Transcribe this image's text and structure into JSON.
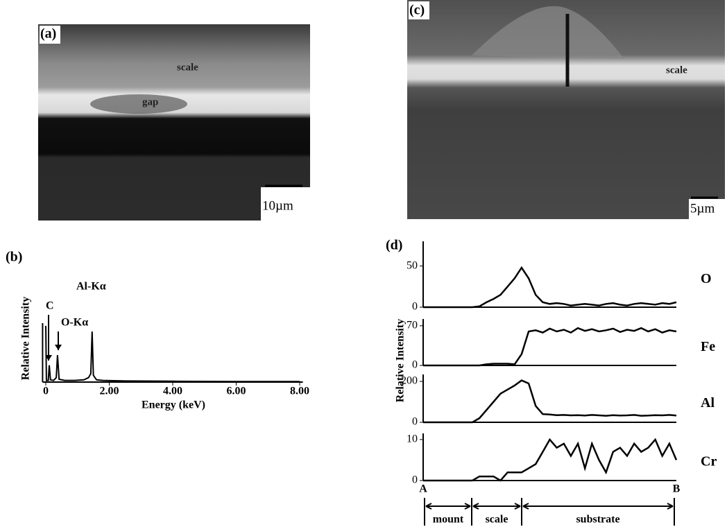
{
  "panels": {
    "a": {
      "label": "(a)",
      "annotations": [
        "scale",
        "gap"
      ],
      "scale_bar": "10µm"
    },
    "c": {
      "label": "(c)",
      "annotations": [
        "scale"
      ],
      "scale_bar": "5µm"
    },
    "d": {
      "label": "(d)",
      "y_label": "Relative Intensity",
      "start": "A",
      "end": "B",
      "segments": [
        "mount",
        "scale",
        "substrate"
      ]
    }
  },
  "chart_data": [
    {
      "type": "line",
      "label": "(b)",
      "x_label": "Energy (keV)",
      "y_label": "Relative Intensity",
      "color": "#000000",
      "x": [
        0,
        0.02,
        0.08,
        0.11,
        0.15,
        0.25,
        0.33,
        0.37,
        0.42,
        0.6,
        0.9,
        1.2,
        1.35,
        1.42,
        1.46,
        1.5,
        1.6,
        1.8,
        2.5,
        4,
        6,
        8
      ],
      "values": [
        100,
        3,
        3,
        30,
        4,
        3,
        8,
        48,
        5,
        3,
        3,
        4,
        8,
        15,
        90,
        12,
        4,
        3,
        2,
        1.5,
        1,
        1
      ],
      "xlim": [
        -0.1,
        8.1
      ],
      "ylim": [
        0,
        105
      ],
      "xticks": [
        0,
        {
          "value": 2,
          "label": "2.00"
        },
        {
          "value": 4,
          "label": "4.00"
        },
        {
          "value": 6,
          "label": "6.00"
        },
        {
          "value": 8,
          "label": "8.00"
        }
      ],
      "annotations": [
        "C",
        "O-Kα",
        "Al-Kα"
      ]
    },
    {
      "type": "line",
      "series": [
        {
          "name": "O",
          "color": "#000000",
          "values": [
            0,
            0,
            0,
            0,
            0,
            0,
            0,
            0,
            1,
            6,
            10,
            15,
            25,
            35,
            48,
            35,
            15,
            6,
            4,
            5,
            4,
            2,
            3,
            4,
            3,
            2,
            4,
            5,
            3,
            2,
            4,
            5,
            4,
            3,
            5,
            4,
            6
          ]
        }
      ],
      "ylim": [
        0,
        80
      ],
      "yticks": [
        0,
        50
      ]
    },
    {
      "type": "line",
      "series": [
        {
          "name": "Fe",
          "color": "#000000",
          "values": [
            0,
            0,
            0,
            0,
            0,
            0,
            0,
            0,
            0,
            2,
            3,
            3,
            3,
            2,
            20,
            60,
            62,
            58,
            65,
            60,
            63,
            58,
            66,
            61,
            64,
            60,
            62,
            65,
            59,
            63,
            61,
            66,
            60,
            64,
            58,
            62,
            60
          ]
        }
      ],
      "ylim": [
        0,
        82
      ],
      "yticks": [
        0,
        70
      ]
    },
    {
      "type": "line",
      "series": [
        {
          "name": "Al",
          "color": "#000000",
          "values": [
            0,
            0,
            0,
            0,
            0,
            0,
            0,
            0,
            20,
            60,
            100,
            140,
            160,
            180,
            205,
            190,
            80,
            40,
            38,
            35,
            36,
            34,
            35,
            33,
            36,
            34,
            32,
            35,
            33,
            34,
            36,
            32,
            33,
            35,
            34,
            36,
            33
          ]
        }
      ],
      "ylim": [
        0,
        234
      ],
      "yticks": [
        0,
        200
      ]
    },
    {
      "type": "line",
      "series": [
        {
          "name": "Cr",
          "color": "#000000",
          "values": [
            0,
            0,
            0,
            0,
            0,
            0,
            0,
            0,
            1,
            1,
            1,
            0,
            2,
            2,
            2,
            3,
            4,
            7,
            10,
            8,
            9,
            6,
            9,
            3,
            9,
            5,
            2,
            7,
            8,
            6,
            9,
            7,
            8,
            10,
            6,
            9,
            5
          ]
        }
      ],
      "ylim": [
        0,
        11.5
      ],
      "yticks": [
        0,
        10
      ]
    }
  ]
}
